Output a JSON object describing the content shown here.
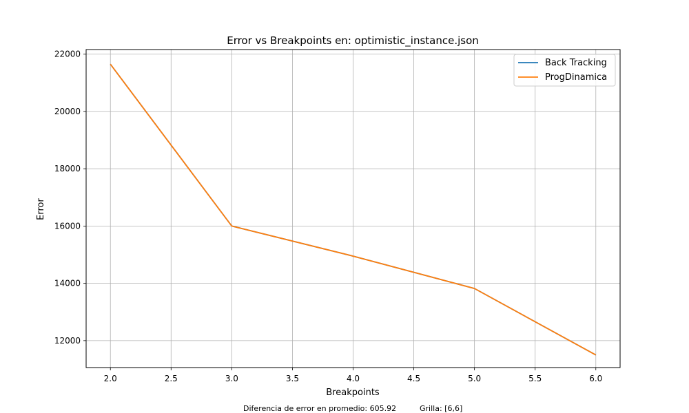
{
  "chart_data": {
    "type": "line",
    "title": "Error vs Breakpoints en: optimistic_instance.json",
    "xlabel": "Breakpoints",
    "ylabel": "Error",
    "xlim": [
      1.8,
      6.2
    ],
    "ylim": [
      11060,
      22160
    ],
    "xticks": [
      2.0,
      2.5,
      3.0,
      3.5,
      4.0,
      4.5,
      5.0,
      5.5,
      6.0
    ],
    "xtick_labels": [
      "2.0",
      "2.5",
      "3.0",
      "3.5",
      "4.0",
      "4.5",
      "5.0",
      "5.5",
      "6.0"
    ],
    "yticks": [
      12000,
      14000,
      16000,
      18000,
      20000,
      22000
    ],
    "ytick_labels": [
      "12000",
      "14000",
      "16000",
      "18000",
      "20000",
      "22000"
    ],
    "grid": true,
    "legend_position": "top-right",
    "series": [
      {
        "name": "Back Tracking",
        "color": "#1f77b4",
        "x": [
          2,
          3,
          4,
          5,
          6
        ],
        "y": [
          21650,
          16000,
          14950,
          13820,
          11500
        ]
      },
      {
        "name": "ProgDinamica",
        "color": "#ff7f0e",
        "x": [
          2,
          3,
          4,
          5,
          6
        ],
        "y": [
          21650,
          16000,
          14950,
          13820,
          11500
        ]
      }
    ]
  },
  "footer": {
    "diff_text": "Diferencia de error en promedio: 605.92",
    "grid_text": "Grilla: [6,6]"
  }
}
